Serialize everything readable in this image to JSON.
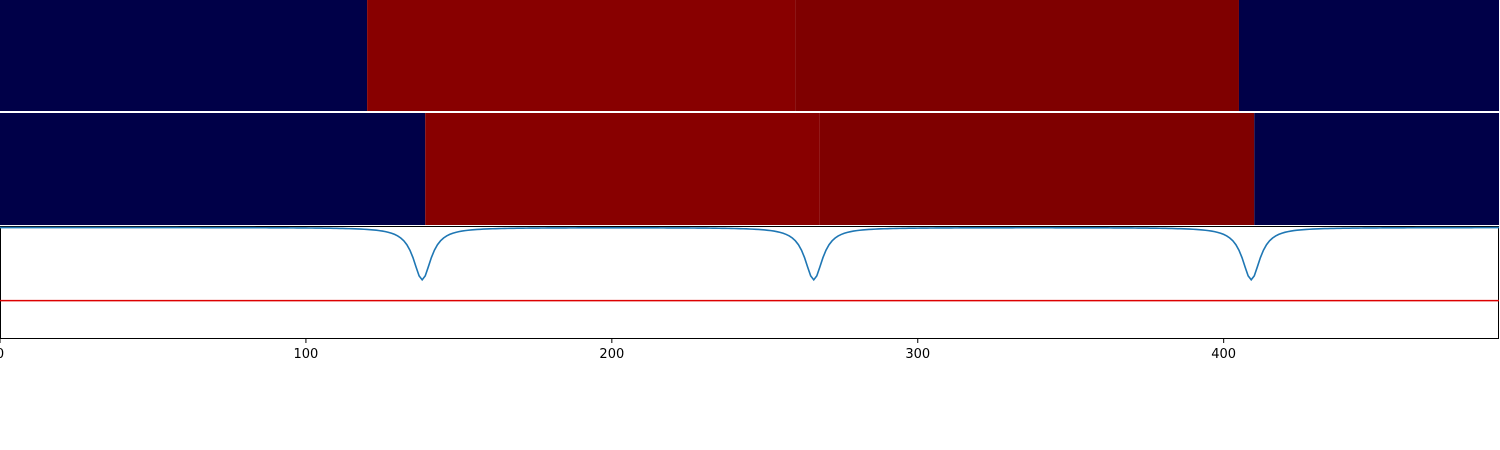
{
  "chart_data": [
    {
      "type": "heatmap",
      "title": "",
      "xlabel": "",
      "ylabel": "",
      "xlim": [
        0,
        490
      ],
      "segments": [
        {
          "start": 0,
          "end": 120,
          "color": "#000048"
        },
        {
          "start": 120,
          "end": 260,
          "color": "#880000"
        },
        {
          "start": 260,
          "end": 405,
          "color": "#7f0000"
        },
        {
          "start": 405,
          "end": 490,
          "color": "#000048"
        }
      ]
    },
    {
      "type": "heatmap",
      "title": "",
      "xlabel": "",
      "ylabel": "",
      "xlim": [
        0,
        490
      ],
      "segments": [
        {
          "start": 0,
          "end": 139,
          "color": "#000048"
        },
        {
          "start": 139,
          "end": 268,
          "color": "#880000"
        },
        {
          "start": 268,
          "end": 410,
          "color": "#7f0000"
        },
        {
          "start": 410,
          "end": 490,
          "color": "#000048"
        }
      ]
    },
    {
      "type": "line",
      "title": "",
      "xlabel": "",
      "ylabel": "",
      "xlim": [
        0,
        490
      ],
      "ylim": [
        -1.5,
        0.0
      ],
      "grid": false,
      "xticks": [
        0,
        100,
        200,
        300,
        400
      ],
      "series": [
        {
          "color": "#1f77b4",
          "baseline": -0.02,
          "dips": [
            {
              "center": 138,
              "depth": 0.7,
              "width": 3.5
            },
            {
              "center": 266,
              "depth": 0.7,
              "width": 3.5
            },
            {
              "center": 409,
              "depth": 0.7,
              "width": 3.5
            }
          ]
        }
      ],
      "threshold": {
        "y": -1.0,
        "color": "#dd0000"
      }
    }
  ]
}
